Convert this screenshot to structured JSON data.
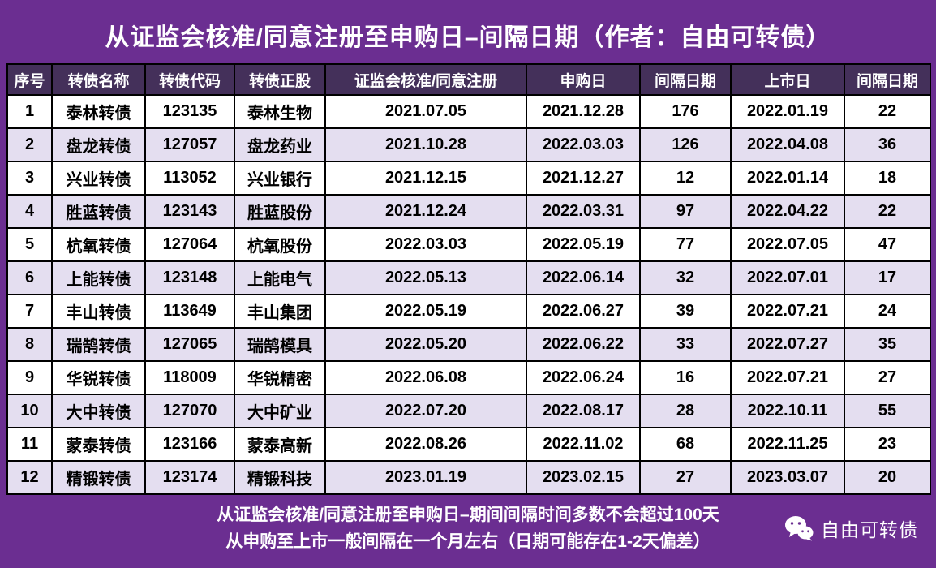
{
  "title": "从证监会核准/同意注册至申购日–间隔日期（作者：自由可转债）",
  "chart_data": {
    "type": "table",
    "title": "从证监会核准/同意注册至申购日–间隔日期（作者：自由可转债）",
    "columns": [
      "序号",
      "转债名称",
      "转债代码",
      "转债正股",
      "证监会核准/同意注册",
      "申购日",
      "间隔日期",
      "上市日",
      "间隔日期"
    ],
    "rows": [
      [
        "1",
        "泰林转债",
        "123135",
        "泰林生物",
        "2021.07.05",
        "2021.12.28",
        "176",
        "2022.01.19",
        "22"
      ],
      [
        "2",
        "盘龙转债",
        "127057",
        "盘龙药业",
        "2021.10.28",
        "2022.03.03",
        "126",
        "2022.04.08",
        "36"
      ],
      [
        "3",
        "兴业转债",
        "113052",
        "兴业银行",
        "2021.12.15",
        "2021.12.27",
        "12",
        "2022.01.14",
        "18"
      ],
      [
        "4",
        "胜蓝转债",
        "123143",
        "胜蓝股份",
        "2021.12.24",
        "2022.03.31",
        "97",
        "2022.04.22",
        "22"
      ],
      [
        "5",
        "杭氧转债",
        "127064",
        "杭氧股份",
        "2022.03.03",
        "2022.05.19",
        "77",
        "2022.07.05",
        "47"
      ],
      [
        "6",
        "上能转债",
        "123148",
        "上能电气",
        "2022.05.13",
        "2022.06.14",
        "32",
        "2022.07.01",
        "17"
      ],
      [
        "7",
        "丰山转债",
        "113649",
        "丰山集团",
        "2022.05.19",
        "2022.06.27",
        "39",
        "2022.07.21",
        "24"
      ],
      [
        "8",
        "瑞鹄转债",
        "127065",
        "瑞鹄模具",
        "2022.05.20",
        "2022.06.22",
        "33",
        "2022.07.27",
        "35"
      ],
      [
        "9",
        "华锐转债",
        "118009",
        "华锐精密",
        "2022.06.08",
        "2022.06.24",
        "16",
        "2022.07.21",
        "27"
      ],
      [
        "10",
        "大中转债",
        "127070",
        "大中矿业",
        "2022.07.20",
        "2022.08.17",
        "28",
        "2022.10.11",
        "55"
      ],
      [
        "11",
        "蒙泰转债",
        "123166",
        "蒙泰高新",
        "2022.08.26",
        "2022.11.02",
        "68",
        "2022.11.25",
        "23"
      ],
      [
        "12",
        "精锻转债",
        "123174",
        "精锻科技",
        "2023.01.19",
        "2023.02.15",
        "27",
        "2023.03.07",
        "20"
      ]
    ],
    "layout_hints": {
      "header_bg": "#44305A",
      "row_alt_bg": "#E4DEF0",
      "grid": true
    }
  },
  "footer": {
    "line1": "从证监会核准/同意注册至申购日–期间间隔时间多数不会超过100天",
    "line2": "从申购至上市一般间隔在一个月左右（日期可能存在1-2天偏差）",
    "brand": "自由可转债",
    "brand_icon": "wechat-icon"
  },
  "colors": {
    "background": "#6B2E91",
    "header_bg": "#44305A",
    "row_alt_bg": "#E4DEF0",
    "border": "#000000",
    "text_light": "#FFFFFF",
    "text_dark": "#000000"
  }
}
